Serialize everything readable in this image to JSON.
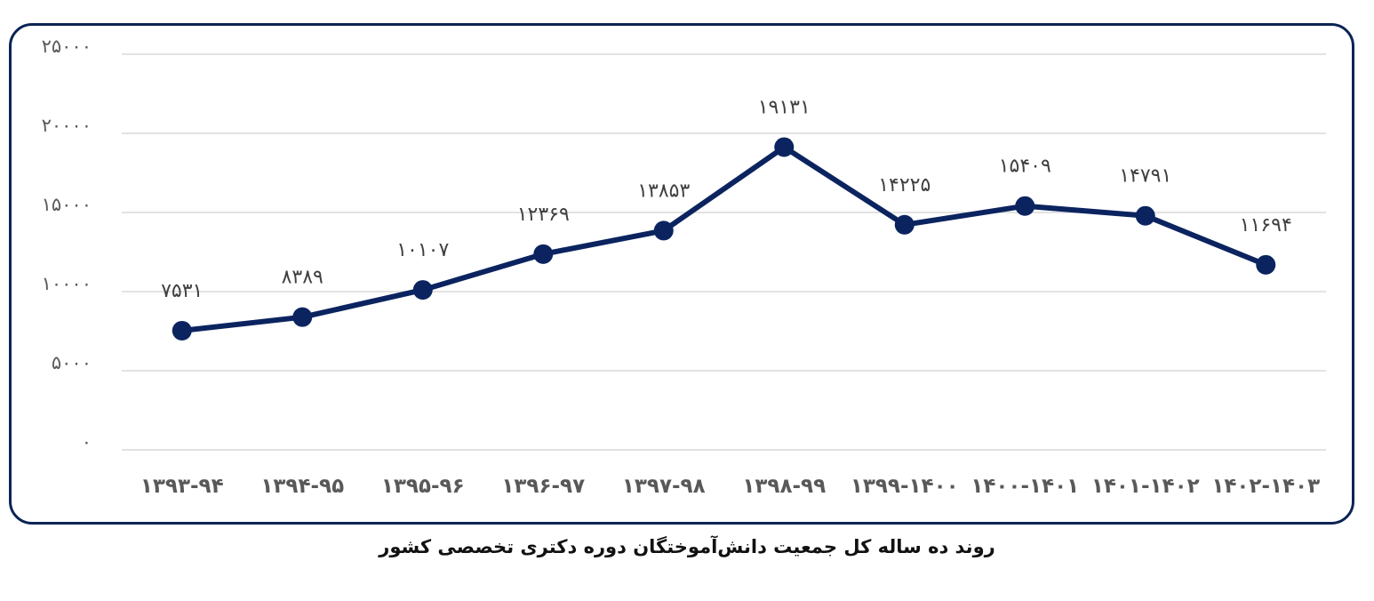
{
  "caption": "روند ده ساله کل جمعیت دانش‌آموختگان دوره دکتری تخصصی کشور",
  "colors": {
    "line": "#0b2460",
    "frame": "#0b2454",
    "grid": "#d9d9d9",
    "axis_text": "#595959",
    "label_text": "#404040"
  },
  "chart_data": {
    "type": "line",
    "title": "روند ده ساله کل جمعیت دانش‌آموختگان دوره دکتری تخصصی کشور",
    "xlabel": "",
    "ylabel": "",
    "ylim": [
      0,
      25000
    ],
    "grid": true,
    "legend": "none",
    "y_ticks": [
      0,
      5000,
      10000,
      15000,
      20000,
      25000
    ],
    "y_tick_labels": [
      "۰",
      "۵۰۰۰",
      "۱۰۰۰۰",
      "۱۵۰۰۰",
      "۲۰۰۰۰",
      "۲۵۰۰۰"
    ],
    "categories": [
      "1393-94",
      "1394-95",
      "1395-96",
      "1396-97",
      "1397-98",
      "1398-99",
      "1399-1400",
      "1400-1401",
      "1401-1402",
      "1402-1403"
    ],
    "category_labels": [
      "۱۳۹۳-۹۴",
      "۱۳۹۴-۹۵",
      "۱۳۹۵-۹۶",
      "۱۳۹۶-۹۷",
      "۱۳۹۷-۹۸",
      "۱۳۹۸-۹۹",
      "۱۳۹۹-۱۴۰۰",
      "۱۴۰۰-۱۴۰۱",
      "۱۴۰۱-۱۴۰۲",
      "۱۴۰۲-۱۴۰۳"
    ],
    "series": [
      {
        "name": "کل جمعیت دانش‌آموختگان",
        "values": [
          7531,
          8389,
          10107,
          12369,
          13853,
          19131,
          14225,
          15409,
          14791,
          11694
        ],
        "data_labels": [
          "۷۵۳۱",
          "۸۳۸۹",
          "۱۰۱۰۷",
          "۱۲۳۶۹",
          "۱۳۸۵۳",
          "۱۹۱۳۱",
          "۱۴۲۲۵",
          "۱۵۴۰۹",
          "۱۴۷۹۱",
          "۱۱۶۹۴"
        ]
      }
    ]
  }
}
